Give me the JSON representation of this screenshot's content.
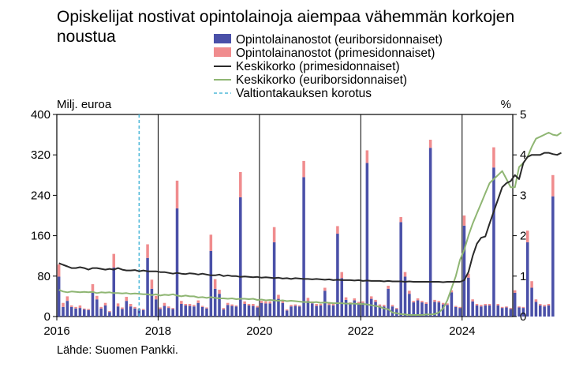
{
  "chart_data": {
    "type": "bar",
    "title": [
      "Opiskelijat nostivat opintolainoja aiempaa vähemmän korkojen",
      "noustua"
    ],
    "source": "Lähde: Suomen Pankki.",
    "left_unit": "Milj. euroa",
    "right_unit": "%",
    "ylim_left": [
      0,
      400
    ],
    "ylim_right": [
      0,
      5
    ],
    "yticks_left": [
      "0",
      "80",
      "160",
      "240",
      "320",
      "400"
    ],
    "yticks_right": [
      "0",
      "1",
      "2",
      "3",
      "4",
      "5"
    ],
    "xlim": [
      "2016-01",
      "2024-12"
    ],
    "xtick_labels": [
      "2016",
      "2018",
      "2020",
      "2022",
      "2024"
    ],
    "grid": "vertical lines at January of each even year",
    "legend": {
      "placement": "top",
      "items": [
        {
          "label": "Opintolainanostot (euriborsidonnaiset)",
          "kind": "bar"
        },
        {
          "label": "Opintolainanostot (primesidonnaiset)",
          "kind": "bar"
        },
        {
          "label": "Keskikorko (primesidonnaiset)",
          "kind": "line"
        },
        {
          "label": "Keskikorko (euriborsidonnaiset)",
          "kind": "line"
        },
        {
          "label": "Valtiontakauksen korotus",
          "kind": "dashed"
        }
      ]
    },
    "colors": {
      "euribor_bar": "#4a50a8",
      "prime_bar": "#f08c8e",
      "prime_line": "#2a2a2a",
      "euribor_line": "#8fb673",
      "guarantee_line": "#4fb8d8"
    },
    "guarantee_month": "2017-08",
    "bars_start_month": "2016-01",
    "bars_euribor": [
      79,
      19,
      31,
      19,
      16,
      17,
      14,
      13,
      47,
      34,
      16,
      22,
      9,
      97,
      20,
      15,
      31,
      20,
      16,
      14,
      13,
      116,
      55,
      34,
      15,
      21,
      17,
      15,
      214,
      25,
      22,
      21,
      20,
      27,
      19,
      16,
      130,
      55,
      45,
      14,
      23,
      21,
      20,
      236,
      25,
      22,
      21,
      18,
      27,
      26,
      26,
      147,
      35,
      27,
      12,
      20,
      21,
      20,
      276,
      31,
      26,
      21,
      22,
      51,
      23,
      22,
      164,
      76,
      33,
      25,
      32,
      26,
      27,
      304,
      35,
      29,
      21,
      20,
      55,
      20,
      15,
      187,
      79,
      45,
      28,
      32,
      28,
      25,
      334,
      29,
      28,
      24,
      23,
      48,
      19,
      17,
      180,
      77,
      30,
      22,
      20,
      22,
      22,
      295,
      22,
      17,
      18,
      15,
      47,
      18,
      17,
      147,
      57,
      29,
      22,
      20,
      22,
      238
    ],
    "bars_prime": [
      24,
      8,
      9,
      3,
      3,
      5,
      2,
      2,
      17,
      7,
      3,
      5,
      2,
      27,
      6,
      3,
      8,
      5,
      3,
      2,
      2,
      27,
      18,
      7,
      3,
      6,
      3,
      2,
      55,
      6,
      3,
      4,
      3,
      5,
      2,
      2,
      32,
      19,
      8,
      3,
      4,
      3,
      2,
      50,
      5,
      3,
      4,
      3,
      4,
      4,
      4,
      30,
      8,
      5,
      2,
      3,
      3,
      2,
      32,
      6,
      4,
      4,
      3,
      6,
      3,
      3,
      15,
      12,
      5,
      3,
      4,
      3,
      3,
      25,
      5,
      4,
      3,
      3,
      6,
      3,
      2,
      10,
      9,
      6,
      3,
      4,
      3,
      3,
      16,
      4,
      3,
      3,
      3,
      4,
      2,
      2,
      20,
      8,
      4,
      3,
      3,
      3,
      3,
      40,
      3,
      2,
      2,
      2,
      5,
      2,
      2,
      23,
      13,
      5,
      3,
      3,
      3,
      42
    ],
    "prime_rate_pct": [
      1.32,
      1.28,
      1.24,
      1.2,
      1.2,
      1.22,
      1.2,
      1.16,
      1.2,
      1.2,
      1.18,
      1.16,
      1.18,
      1.16,
      1.2,
      1.16,
      1.14,
      1.14,
      1.15,
      1.12,
      1.14,
      1.12,
      1.12,
      1.12,
      1.1,
      1.1,
      1.08,
      1.06,
      1.08,
      1.06,
      1.05,
      1.07,
      1.06,
      1.04,
      1.06,
      1.04,
      1.02,
      1.02,
      1.04,
      1.0,
      1.02,
      1.0,
      1.0,
      0.98,
      0.99,
      0.98,
      0.97,
      0.98,
      0.96,
      0.97,
      0.96,
      0.95,
      0.96,
      0.94,
      0.95,
      0.93,
      0.95,
      0.94,
      0.93,
      0.93,
      0.92,
      0.93,
      0.92,
      0.91,
      0.92,
      0.9,
      0.91,
      0.9,
      0.9,
      0.9,
      0.89,
      0.9,
      0.88,
      0.89,
      0.88,
      0.88,
      0.88,
      0.87,
      0.88,
      0.87,
      0.87,
      0.87,
      0.86,
      0.87,
      0.86,
      0.86,
      0.86,
      0.86,
      0.86,
      0.86,
      0.86,
      0.85,
      0.86,
      0.86,
      0.86,
      0.86,
      0.9,
      1.1,
      1.5,
      1.8,
      1.95,
      1.98,
      2.3,
      2.6,
      2.9,
      3.2,
      3.3,
      3.35,
      3.5,
      3.4,
      3.8,
      3.95,
      4.0,
      4.0,
      4.0,
      4.05,
      4.05,
      4.02,
      4.0,
      4.05
    ],
    "euribor_rate_pct": [
      0.66,
      0.62,
      0.6,
      0.62,
      0.61,
      0.6,
      0.61,
      0.6,
      0.61,
      0.58,
      0.6,
      0.59,
      0.6,
      0.58,
      0.58,
      0.57,
      0.58,
      0.56,
      0.57,
      0.56,
      0.55,
      0.55,
      0.53,
      0.55,
      0.52,
      0.54,
      0.53,
      0.55,
      0.52,
      0.5,
      0.52,
      0.5,
      0.5,
      0.47,
      0.48,
      0.46,
      0.48,
      0.46,
      0.45,
      0.45,
      0.44,
      0.45,
      0.43,
      0.44,
      0.44,
      0.43,
      0.44,
      0.41,
      0.42,
      0.4,
      0.41,
      0.4,
      0.39,
      0.4,
      0.38,
      0.39,
      0.38,
      0.37,
      0.36,
      0.36,
      0.35,
      0.36,
      0.34,
      0.35,
      0.34,
      0.33,
      0.33,
      0.33,
      0.32,
      0.32,
      0.32,
      0.31,
      0.31,
      0.3,
      0.28,
      0.26,
      0.24,
      0.2,
      0.18,
      0.1,
      0.08,
      0.06,
      0.05,
      0.04,
      0.04,
      0.04,
      0.04,
      0.05,
      0.05,
      0.06,
      0.1,
      0.2,
      0.4,
      0.7,
      1.0,
      1.4,
      1.65,
      2.0,
      2.3,
      2.55,
      2.8,
      3.05,
      3.3,
      3.4,
      3.5,
      3.6,
      3.4,
      3.2,
      3.2,
      3.7,
      3.8,
      3.95,
      4.2,
      4.4,
      4.45,
      4.5,
      4.55,
      4.5,
      4.48,
      4.55
    ]
  }
}
